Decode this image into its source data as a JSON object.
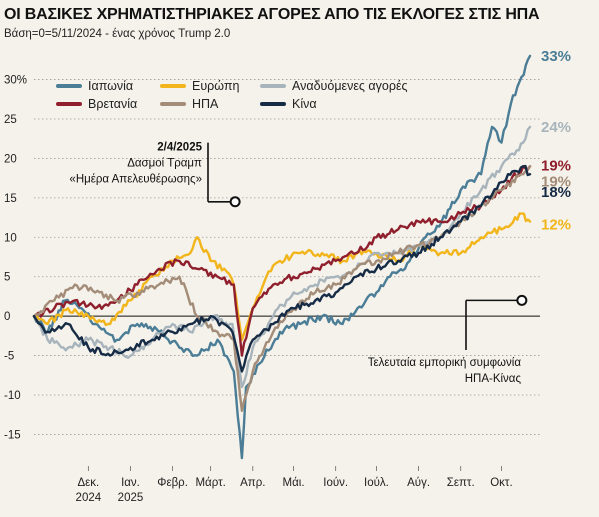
{
  "header": {
    "title": "ΟΙ ΒΑΣΙΚΕΣ ΧΡΗΜΑΤΙΣΤΗΡΙΑΚΕΣ ΑΓΟΡΕΣ ΑΠΟ ΤΙΣ ΕΚΛΟΓΕΣ ΣΤΙΣ ΗΠΑ",
    "subtitle": "Βάση=0=5/11/2024 - ένας χρόνος Trump 2.0"
  },
  "chart_data": {
    "type": "line",
    "title": "ΟΙ ΒΑΣΙΚΕΣ ΧΡΗΜΑΤΙΣΤΗΡΙΑΚΕΣ ΑΓΟΡΕΣ ΑΠΟ ΤΙΣ ΕΚΛΟΓΕΣ ΣΤΙΣ ΗΠΑ",
    "subtitle": "Βάση=0=5/11/2024 - ένας χρόνος Trump 2.0",
    "xlabel": "",
    "ylabel": "",
    "xlim": [
      "2024-11-05",
      "2025-11-05"
    ],
    "ylim": [
      -19,
      34
    ],
    "y_ticks": [
      -15,
      -10,
      -5,
      0,
      5,
      10,
      15,
      20,
      25,
      30
    ],
    "y_tick_labels": [
      "-15",
      "-10",
      "-5",
      "0",
      "5",
      "10",
      "15",
      "20",
      "25",
      "30%"
    ],
    "x_ticks": [
      {
        "date": "2024-12-15",
        "label": "Δεκ.",
        "label2": "2024"
      },
      {
        "date": "2025-01-15",
        "label": "Ιαν.",
        "label2": "2025"
      },
      {
        "date": "2025-02-15",
        "label": "Φεβρ.",
        "label2": ""
      },
      {
        "date": "2025-03-15",
        "label": "Μάρτ.",
        "label2": ""
      },
      {
        "date": "2025-04-15",
        "label": "Απρ.",
        "label2": ""
      },
      {
        "date": "2025-05-15",
        "label": "Μάι.",
        "label2": ""
      },
      {
        "date": "2025-06-15",
        "label": "Ιούν.",
        "label2": ""
      },
      {
        "date": "2025-07-15",
        "label": "Ιούλ.",
        "label2": ""
      },
      {
        "date": "2025-08-15",
        "label": "Αύγ.",
        "label2": ""
      },
      {
        "date": "2025-09-15",
        "label": "Σεπτ.",
        "label2": ""
      },
      {
        "date": "2025-10-15",
        "label": "Οκτ.",
        "label2": ""
      }
    ],
    "grid": "horizontal-dotted",
    "legend": "top-left",
    "series": [
      {
        "name": "Ιαπωνία",
        "color": "#4b7d96",
        "end_label": "33%",
        "points": [
          [
            "2024-11-05",
            0
          ],
          [
            "2024-11-15",
            -2
          ],
          [
            "2024-11-28",
            2
          ],
          [
            "2024-12-10",
            1
          ],
          [
            "2024-12-20",
            -1
          ],
          [
            "2025-01-05",
            -3
          ],
          [
            "2025-01-20",
            -1
          ],
          [
            "2025-02-05",
            -2
          ],
          [
            "2025-02-20",
            -4
          ],
          [
            "2025-03-05",
            -5
          ],
          [
            "2025-03-20",
            -3
          ],
          [
            "2025-04-01",
            -7
          ],
          [
            "2025-04-07",
            -18
          ],
          [
            "2025-04-10",
            -9
          ],
          [
            "2025-04-20",
            -6
          ],
          [
            "2025-05-05",
            -2
          ],
          [
            "2025-05-20",
            -1
          ],
          [
            "2025-06-05",
            0
          ],
          [
            "2025-06-20",
            -1
          ],
          [
            "2025-07-01",
            1
          ],
          [
            "2025-07-15",
            3
          ],
          [
            "2025-07-25",
            5
          ],
          [
            "2025-08-05",
            6
          ],
          [
            "2025-08-20",
            10
          ],
          [
            "2025-09-01",
            12
          ],
          [
            "2025-09-15",
            16
          ],
          [
            "2025-09-30",
            18
          ],
          [
            "2025-10-08",
            24
          ],
          [
            "2025-10-15",
            22
          ],
          [
            "2025-10-22",
            27
          ],
          [
            "2025-11-05",
            33
          ]
        ]
      },
      {
        "name": "Ευρώπη",
        "color": "#f2b51c",
        "end_label": "12%",
        "points": [
          [
            "2024-11-05",
            0
          ],
          [
            "2024-11-15",
            -1
          ],
          [
            "2024-11-30",
            1
          ],
          [
            "2024-12-15",
            0
          ],
          [
            "2024-12-31",
            -1
          ],
          [
            "2025-01-15",
            2
          ],
          [
            "2025-01-31",
            5
          ],
          [
            "2025-02-15",
            7
          ],
          [
            "2025-02-28",
            8
          ],
          [
            "2025-03-05",
            10
          ],
          [
            "2025-03-15",
            7
          ],
          [
            "2025-03-25",
            6
          ],
          [
            "2025-04-01",
            4
          ],
          [
            "2025-04-07",
            -3
          ],
          [
            "2025-04-15",
            1
          ],
          [
            "2025-04-25",
            5
          ],
          [
            "2025-05-05",
            7
          ],
          [
            "2025-05-20",
            8
          ],
          [
            "2025-06-05",
            8
          ],
          [
            "2025-06-20",
            7
          ],
          [
            "2025-07-01",
            8
          ],
          [
            "2025-07-15",
            8
          ],
          [
            "2025-07-31",
            7
          ],
          [
            "2025-08-15",
            9
          ],
          [
            "2025-08-31",
            8
          ],
          [
            "2025-09-15",
            8
          ],
          [
            "2025-09-30",
            10
          ],
          [
            "2025-10-15",
            11
          ],
          [
            "2025-10-30",
            13
          ],
          [
            "2025-11-05",
            12
          ]
        ]
      },
      {
        "name": "Αναδυόμενες αγορές",
        "color": "#a8b4bc",
        "end_label": "24%",
        "points": [
          [
            "2024-11-05",
            0
          ],
          [
            "2024-11-15",
            -3
          ],
          [
            "2024-11-30",
            -4
          ],
          [
            "2024-12-15",
            -3
          ],
          [
            "2024-12-31",
            -4
          ],
          [
            "2025-01-15",
            -5
          ],
          [
            "2025-01-31",
            -3
          ],
          [
            "2025-02-15",
            -1
          ],
          [
            "2025-02-28",
            -2
          ],
          [
            "2025-03-15",
            0
          ],
          [
            "2025-03-31",
            -1
          ],
          [
            "2025-04-07",
            -9
          ],
          [
            "2025-04-15",
            -4
          ],
          [
            "2025-04-30",
            0
          ],
          [
            "2025-05-15",
            3
          ],
          [
            "2025-05-31",
            4
          ],
          [
            "2025-06-15",
            5
          ],
          [
            "2025-06-30",
            6
          ],
          [
            "2025-07-15",
            8
          ],
          [
            "2025-07-31",
            8
          ],
          [
            "2025-08-15",
            9
          ],
          [
            "2025-08-31",
            10
          ],
          [
            "2025-09-15",
            13
          ],
          [
            "2025-09-30",
            16
          ],
          [
            "2025-10-15",
            19
          ],
          [
            "2025-10-31",
            22
          ],
          [
            "2025-11-05",
            24
          ]
        ]
      },
      {
        "name": "Βρετανία",
        "color": "#8f1f2c",
        "end_label": "19%",
        "points": [
          [
            "2024-11-05",
            0
          ],
          [
            "2024-11-20",
            1
          ],
          [
            "2024-12-05",
            2
          ],
          [
            "2024-12-20",
            1
          ],
          [
            "2025-01-05",
            2
          ],
          [
            "2025-01-20",
            4
          ],
          [
            "2025-02-05",
            6
          ],
          [
            "2025-02-20",
            7
          ],
          [
            "2025-03-05",
            6
          ],
          [
            "2025-03-20",
            5
          ],
          [
            "2025-04-01",
            4
          ],
          [
            "2025-04-07",
            -5
          ],
          [
            "2025-04-15",
            1
          ],
          [
            "2025-04-30",
            4
          ],
          [
            "2025-05-15",
            5
          ],
          [
            "2025-05-31",
            6
          ],
          [
            "2025-06-15",
            7
          ],
          [
            "2025-06-30",
            8
          ],
          [
            "2025-07-15",
            10
          ],
          [
            "2025-07-31",
            11
          ],
          [
            "2025-08-15",
            12
          ],
          [
            "2025-08-31",
            12
          ],
          [
            "2025-09-15",
            13
          ],
          [
            "2025-09-30",
            14
          ],
          [
            "2025-10-15",
            16
          ],
          [
            "2025-10-31",
            19
          ],
          [
            "2025-11-05",
            19
          ]
        ]
      },
      {
        "name": "ΗΠΑ",
        "color": "#a38c78",
        "end_label": "19%",
        "points": [
          [
            "2024-11-05",
            0
          ],
          [
            "2024-11-20",
            2
          ],
          [
            "2024-12-05",
            4
          ],
          [
            "2024-12-20",
            3
          ],
          [
            "2025-01-05",
            2
          ],
          [
            "2025-01-20",
            3
          ],
          [
            "2025-02-05",
            4
          ],
          [
            "2025-02-20",
            5
          ],
          [
            "2025-03-05",
            0
          ],
          [
            "2025-03-20",
            -2
          ],
          [
            "2025-04-01",
            -3
          ],
          [
            "2025-04-07",
            -12
          ],
          [
            "2025-04-15",
            -7
          ],
          [
            "2025-04-30",
            -2
          ],
          [
            "2025-05-15",
            1
          ],
          [
            "2025-05-31",
            3
          ],
          [
            "2025-06-15",
            4
          ],
          [
            "2025-06-30",
            6
          ],
          [
            "2025-07-15",
            7
          ],
          [
            "2025-07-31",
            8
          ],
          [
            "2025-08-15",
            9
          ],
          [
            "2025-08-31",
            10
          ],
          [
            "2025-09-15",
            12
          ],
          [
            "2025-09-30",
            14
          ],
          [
            "2025-10-15",
            16
          ],
          [
            "2025-10-31",
            18
          ],
          [
            "2025-11-05",
            19
          ]
        ]
      },
      {
        "name": "Κίνα",
        "color": "#162b45",
        "end_label": "18%",
        "points": [
          [
            "2024-11-05",
            0
          ],
          [
            "2024-11-15",
            -2
          ],
          [
            "2024-11-30",
            -1
          ],
          [
            "2024-12-15",
            -4
          ],
          [
            "2024-12-31",
            -5
          ],
          [
            "2025-01-15",
            -4
          ],
          [
            "2025-01-31",
            -3
          ],
          [
            "2025-02-15",
            -2
          ],
          [
            "2025-02-28",
            -1
          ],
          [
            "2025-03-15",
            0
          ],
          [
            "2025-03-31",
            -2
          ],
          [
            "2025-04-07",
            -7
          ],
          [
            "2025-04-15",
            -3
          ],
          [
            "2025-04-30",
            -1
          ],
          [
            "2025-05-15",
            1
          ],
          [
            "2025-05-31",
            2
          ],
          [
            "2025-06-15",
            3
          ],
          [
            "2025-06-30",
            5
          ],
          [
            "2025-07-15",
            6
          ],
          [
            "2025-07-31",
            7
          ],
          [
            "2025-08-15",
            8
          ],
          [
            "2025-08-31",
            10
          ],
          [
            "2025-09-15",
            12
          ],
          [
            "2025-09-30",
            14
          ],
          [
            "2025-10-15",
            17
          ],
          [
            "2025-10-31",
            19
          ],
          [
            "2025-11-05",
            18
          ]
        ]
      }
    ],
    "annotations": [
      {
        "date": "2025-04-02",
        "y": 14.5,
        "bold": "2/4/2025",
        "lines": [
          "Δασμοί Τραμπ",
          "«Ημέρα Απελευθέρωσης»"
        ],
        "side": "left"
      },
      {
        "date": "2025-10-30",
        "y": 2,
        "bold": "",
        "lines": [
          "Τελευταία εμπορική συμφωνία",
          "ΗΠΑ-Κίνας"
        ],
        "side": "below"
      }
    ]
  }
}
